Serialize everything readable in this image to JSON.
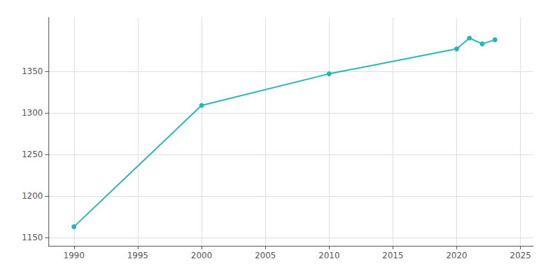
{
  "chart_data": {
    "type": "line",
    "x": [
      1990,
      2000,
      2010,
      2020,
      2021,
      2022,
      2023
    ],
    "values": [
      1163,
      1309,
      1347,
      1377,
      1390,
      1383,
      1388
    ],
    "color": "#2ab5b5",
    "marker": "circle",
    "xlim": [
      1988,
      2026
    ],
    "ylim": [
      1140,
      1415
    ],
    "xticks": [
      1990,
      1995,
      2000,
      2005,
      2010,
      2015,
      2020,
      2025
    ],
    "yticks": [
      1150,
      1200,
      1250,
      1300,
      1350
    ],
    "grid": true
  }
}
